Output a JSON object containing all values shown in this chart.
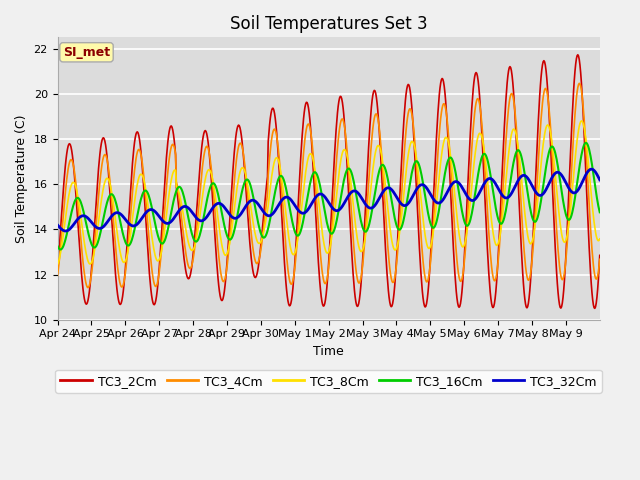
{
  "title": "Soil Temperatures Set 3",
  "xlabel": "Time",
  "ylabel": "Soil Temperature (C)",
  "ylim": [
    10,
    22.5
  ],
  "yticks": [
    10,
    12,
    14,
    16,
    18,
    20,
    22
  ],
  "legend_label": "SI_met",
  "series_labels": [
    "TC3_2Cm",
    "TC3_4Cm",
    "TC3_8Cm",
    "TC3_16Cm",
    "TC3_32Cm"
  ],
  "series_colors": [
    "#CC0000",
    "#FF8C00",
    "#FFE000",
    "#00CC00",
    "#0000CC"
  ],
  "xtick_labels": [
    "Apr 24",
    "Apr 25",
    "Apr 26",
    "Apr 27",
    "Apr 28",
    "Apr 29",
    "Apr 30",
    "May 1",
    "May 2",
    "May 3",
    "May 4",
    "May 5",
    "May 6",
    "May 7",
    "May 8",
    "May 9"
  ],
  "background_color": "#DCDCDC",
  "fig_bg_color": "#F0F0F0",
  "title_fontsize": 12,
  "axis_fontsize": 9,
  "tick_fontsize": 8,
  "legend_fontsize": 9,
  "figsize": [
    6.4,
    4.8
  ],
  "dpi": 100
}
